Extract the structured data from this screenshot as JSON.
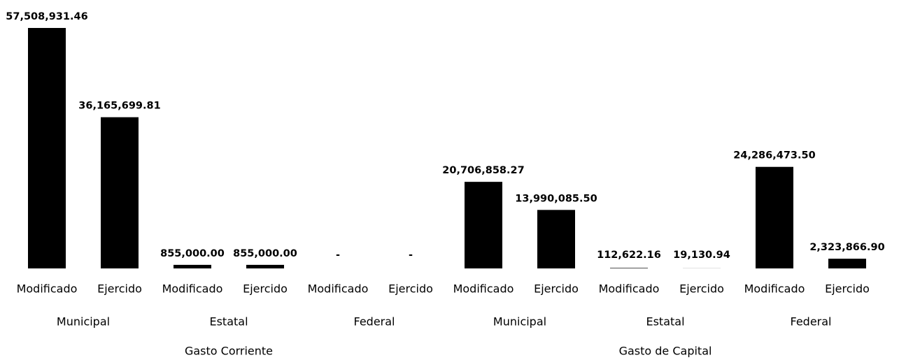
{
  "chart_data": {
    "type": "bar",
    "categories": [
      "Modificado",
      "Ejercido",
      "Modificado",
      "Ejercido",
      "Modificado",
      "Ejercido",
      "Modificado",
      "Ejercido",
      "Modificado",
      "Ejercido",
      "Modificado",
      "Ejercido"
    ],
    "groups": [
      "Municipal",
      "Estatal",
      "Federal",
      "Municipal",
      "Estatal",
      "Federal"
    ],
    "supergroups": [
      "Gasto Corriente",
      "Gasto de Capital"
    ],
    "values": [
      57508931.46,
      36165699.81,
      855000.0,
      855000.0,
      0,
      0,
      20706858.27,
      13990085.5,
      112622.16,
      19130.94,
      24286473.5,
      2323866.9
    ],
    "value_labels": [
      "57,508,931.46",
      "36,165,699.81",
      "855,000.00",
      "855,000.00",
      "-",
      "-",
      "20,706,858.27",
      "13,990,085.50",
      "112,622.16",
      "19,130.94",
      "24,286,473.50",
      "2,323,866.90"
    ],
    "color": "#000000"
  }
}
